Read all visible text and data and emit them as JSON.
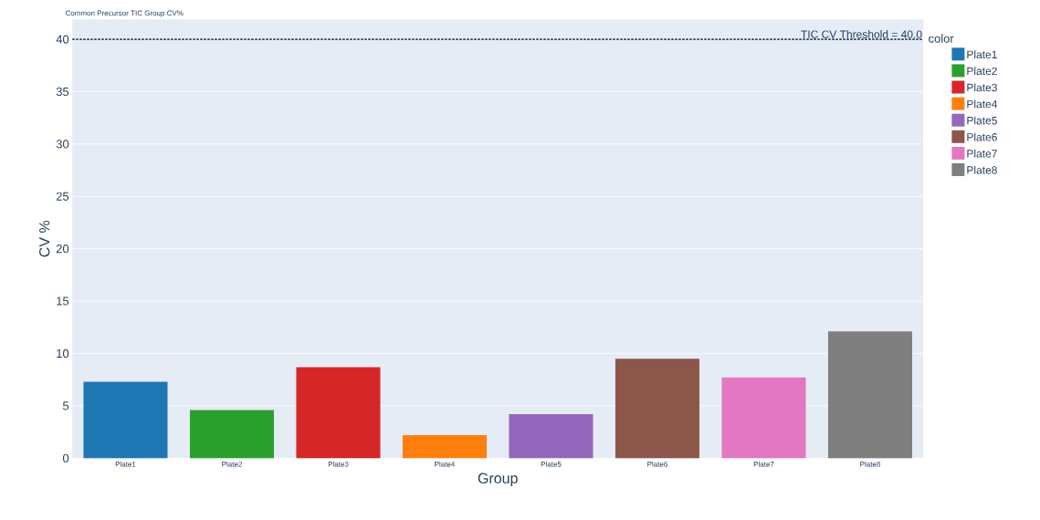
{
  "chart_data": {
    "type": "bar",
    "title": "Common Precursor TIC Group CV%",
    "xlabel": "Group",
    "ylabel": "CV %",
    "legend_title": "color",
    "categories": [
      "Plate1",
      "Plate2",
      "Plate3",
      "Plate4",
      "Plate5",
      "Plate6",
      "Plate7",
      "Plate8"
    ],
    "series": [
      {
        "name": "Plate1",
        "color": "#1f77b4",
        "values": [
          7.3,
          null,
          null,
          null,
          null,
          null,
          null,
          null
        ]
      },
      {
        "name": "Plate2",
        "color": "#2ca02c",
        "values": [
          null,
          4.6,
          null,
          null,
          null,
          null,
          null,
          null
        ]
      },
      {
        "name": "Plate3",
        "color": "#d62728",
        "values": [
          null,
          null,
          8.7,
          null,
          null,
          null,
          null,
          null
        ]
      },
      {
        "name": "Plate4",
        "color": "#ff7f0e",
        "values": [
          null,
          null,
          null,
          2.2,
          null,
          null,
          null,
          null
        ]
      },
      {
        "name": "Plate5",
        "color": "#9467bd",
        "values": [
          null,
          null,
          null,
          null,
          4.2,
          null,
          null,
          null
        ]
      },
      {
        "name": "Plate6",
        "color": "#8c564b",
        "values": [
          null,
          null,
          null,
          null,
          null,
          9.5,
          null,
          null
        ]
      },
      {
        "name": "Plate7",
        "color": "#e377c2",
        "values": [
          null,
          null,
          null,
          null,
          null,
          null,
          7.7,
          null
        ]
      },
      {
        "name": "Plate8",
        "color": "#7f7f7f",
        "values": [
          null,
          null,
          null,
          null,
          null,
          null,
          null,
          12.1
        ]
      }
    ],
    "ylim": [
      0,
      41.9
    ],
    "yticks": [
      0,
      5,
      10,
      15,
      20,
      25,
      30,
      35,
      40
    ],
    "grid": "y",
    "legend": "right",
    "ref_lines": [
      {
        "axis": "y",
        "value": 40,
        "label": "TIC CV Threshold = 40.0",
        "color": "#2a3f5f",
        "line_style": "dotted"
      }
    ]
  }
}
